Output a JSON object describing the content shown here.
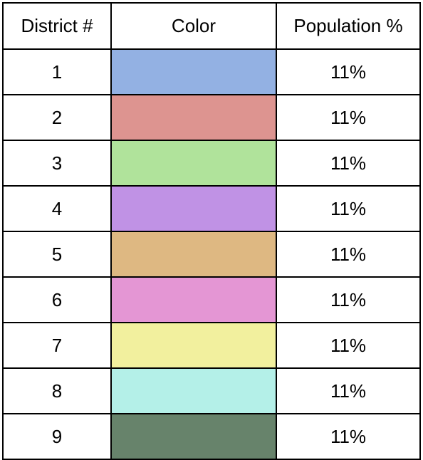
{
  "table": {
    "headers": {
      "district": "District #",
      "color": "Color",
      "population": "Population %"
    },
    "rows": [
      {
        "district": "1",
        "color": "#93b1e3",
        "population": "11%"
      },
      {
        "district": "2",
        "color": "#dd9490",
        "population": "11%"
      },
      {
        "district": "3",
        "color": "#b0e39b",
        "population": "11%"
      },
      {
        "district": "4",
        "color": "#c092e5",
        "population": "11%"
      },
      {
        "district": "5",
        "color": "#deb882",
        "population": "11%"
      },
      {
        "district": "6",
        "color": "#e496d4",
        "population": "11%"
      },
      {
        "district": "7",
        "color": "#f2f09e",
        "population": "11%"
      },
      {
        "district": "8",
        "color": "#b4f0e8",
        "population": "11%"
      },
      {
        "district": "9",
        "color": "#67836b",
        "population": "11%"
      }
    ]
  }
}
